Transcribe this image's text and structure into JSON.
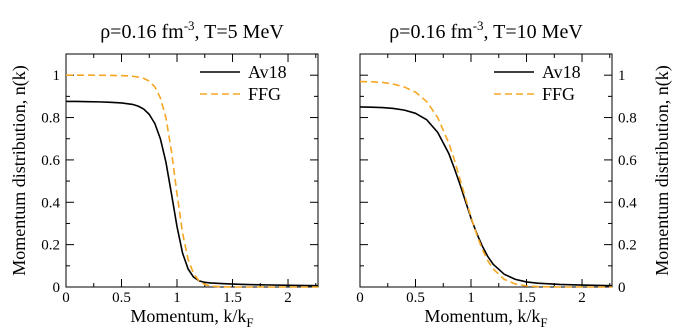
{
  "chart_data": [
    {
      "type": "line",
      "title": {
        "main": "ρ=0.16 fm",
        "sup": "-3",
        "rest": ", T=5 MeV"
      },
      "xlabel": {
        "main": "Momentum, k/k",
        "sub": "F"
      },
      "ylabel": "Momentum distribution, n(k)",
      "xlim": [
        0,
        2.27
      ],
      "ylim": [
        0,
        1.1
      ],
      "xticks": [
        "0",
        "0.5",
        "1",
        "1.5",
        "2"
      ],
      "yticks": [
        "0",
        "0.2",
        "0.4",
        "0.6",
        "0.8",
        "1"
      ],
      "yaxis_side": "left",
      "legend": "top-right",
      "grid": false,
      "series": [
        {
          "name": "Av18",
          "color": "#000000",
          "dash": "solid",
          "x": [
            0,
            0.1,
            0.2,
            0.3,
            0.4,
            0.5,
            0.6,
            0.65,
            0.7,
            0.75,
            0.8,
            0.85,
            0.9,
            0.95,
            1.0,
            1.05,
            1.1,
            1.15,
            1.2,
            1.25,
            1.3,
            1.4,
            1.5,
            1.6,
            1.8,
            2.0,
            2.27
          ],
          "y": [
            0.876,
            0.876,
            0.875,
            0.874,
            0.872,
            0.869,
            0.862,
            0.854,
            0.84,
            0.815,
            0.772,
            0.7,
            0.59,
            0.44,
            0.285,
            0.16,
            0.085,
            0.046,
            0.029,
            0.022,
            0.019,
            0.016,
            0.014,
            0.012,
            0.01,
            0.008,
            0.006
          ]
        },
        {
          "name": "FFG",
          "color": "#F5A623",
          "dash": "dashed",
          "x": [
            0,
            0.2,
            0.4,
            0.5,
            0.6,
            0.65,
            0.7,
            0.75,
            0.8,
            0.85,
            0.9,
            0.95,
            1.0,
            1.05,
            1.1,
            1.15,
            1.2,
            1.25,
            1.3,
            1.4,
            1.5,
            2.27
          ],
          "y": [
            1.0,
            1.0,
            0.999,
            0.998,
            0.995,
            0.991,
            0.985,
            0.972,
            0.945,
            0.893,
            0.8,
            0.64,
            0.44,
            0.255,
            0.13,
            0.062,
            0.028,
            0.012,
            0.005,
            0.001,
            0.0,
            0.0
          ]
        }
      ]
    },
    {
      "type": "line",
      "title": {
        "main": "ρ=0.16 fm",
        "sup": "-3",
        "rest": ", T=10 MeV"
      },
      "xlabel": {
        "main": "Momentum, k/k",
        "sub": "F"
      },
      "ylabel": "Momentum distribution, n(k)",
      "xlim": [
        0,
        2.27
      ],
      "ylim": [
        0,
        1.1
      ],
      "xticks": [
        "0",
        "0.5",
        "1",
        "1.5",
        "2"
      ],
      "yticks": [
        "0",
        "0.2",
        "0.4",
        "0.6",
        "0.8",
        "1"
      ],
      "yaxis_side": "right",
      "legend": "top-right",
      "grid": false,
      "series": [
        {
          "name": "Av18",
          "color": "#000000",
          "dash": "solid",
          "x": [
            0,
            0.1,
            0.2,
            0.3,
            0.4,
            0.5,
            0.6,
            0.7,
            0.8,
            0.85,
            0.9,
            0.95,
            1.0,
            1.05,
            1.1,
            1.15,
            1.2,
            1.3,
            1.4,
            1.5,
            1.6,
            1.8,
            2.0,
            2.27
          ],
          "y": [
            0.85,
            0.849,
            0.847,
            0.843,
            0.835,
            0.82,
            0.79,
            0.73,
            0.63,
            0.56,
            0.485,
            0.405,
            0.325,
            0.255,
            0.195,
            0.145,
            0.107,
            0.06,
            0.036,
            0.024,
            0.018,
            0.012,
            0.009,
            0.006
          ]
        },
        {
          "name": "FFG",
          "color": "#F5A623",
          "dash": "dashed",
          "x": [
            0,
            0.1,
            0.2,
            0.3,
            0.4,
            0.5,
            0.6,
            0.7,
            0.8,
            0.85,
            0.9,
            0.95,
            1.0,
            1.05,
            1.1,
            1.15,
            1.2,
            1.3,
            1.4,
            1.5,
            1.6,
            1.8,
            2.0,
            2.27
          ],
          "y": [
            0.97,
            0.969,
            0.966,
            0.958,
            0.944,
            0.92,
            0.876,
            0.8,
            0.68,
            0.6,
            0.51,
            0.42,
            0.33,
            0.25,
            0.18,
            0.125,
            0.085,
            0.036,
            0.014,
            0.005,
            0.002,
            0.0,
            0.0,
            0.0
          ]
        }
      ]
    }
  ]
}
